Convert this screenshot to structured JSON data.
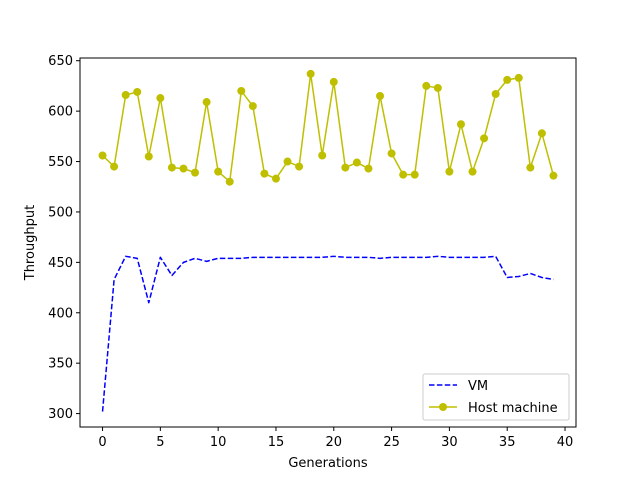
{
  "chart_data": {
    "type": "line",
    "title": "",
    "xlabel": "Generations",
    "ylabel": "Throughput",
    "xlim": [
      -1.95,
      40.95
    ],
    "ylim": [
      286.7,
      652.7
    ],
    "xticks": [
      0,
      5,
      10,
      15,
      20,
      25,
      30,
      35,
      40
    ],
    "yticks": [
      300,
      350,
      400,
      450,
      500,
      550,
      600,
      650
    ],
    "grid": false,
    "legend_position": "lower-right",
    "series": [
      {
        "name": "VM",
        "color": "#0000ff",
        "style": "dashed",
        "marker": "none",
        "x": [
          0,
          1,
          2,
          3,
          4,
          5,
          6,
          7,
          8,
          9,
          10,
          11,
          12,
          13,
          14,
          15,
          16,
          17,
          18,
          19,
          20,
          21,
          22,
          23,
          24,
          25,
          26,
          27,
          28,
          29,
          30,
          31,
          32,
          33,
          34,
          35,
          36,
          37,
          38,
          39
        ],
        "values": [
          302,
          433,
          456,
          454,
          410,
          455,
          437,
          450,
          454,
          451,
          454,
          454,
          454,
          455,
          455,
          455,
          455,
          455,
          455,
          455,
          456,
          455,
          455,
          455,
          454,
          455,
          455,
          455,
          455,
          456,
          455,
          455,
          455,
          455,
          456,
          435,
          436,
          439,
          435,
          433
        ]
      },
      {
        "name": "Host machine",
        "color": "#bfbf00",
        "style": "solid",
        "marker": "circle",
        "x": [
          0,
          1,
          2,
          3,
          4,
          5,
          6,
          7,
          8,
          9,
          10,
          11,
          12,
          13,
          14,
          15,
          16,
          17,
          18,
          19,
          20,
          21,
          22,
          23,
          24,
          25,
          26,
          27,
          28,
          29,
          30,
          31,
          32,
          33,
          34,
          35,
          36,
          37,
          38,
          39
        ],
        "values": [
          556,
          545,
          616,
          619,
          555,
          613,
          544,
          543,
          539,
          609,
          540,
          530,
          620,
          605,
          538,
          533,
          550,
          545,
          637,
          556,
          629,
          544,
          549,
          543,
          615,
          558,
          537,
          537,
          625,
          623,
          540,
          587,
          540,
          573,
          617,
          631,
          633,
          544,
          578,
          536
        ]
      }
    ]
  }
}
